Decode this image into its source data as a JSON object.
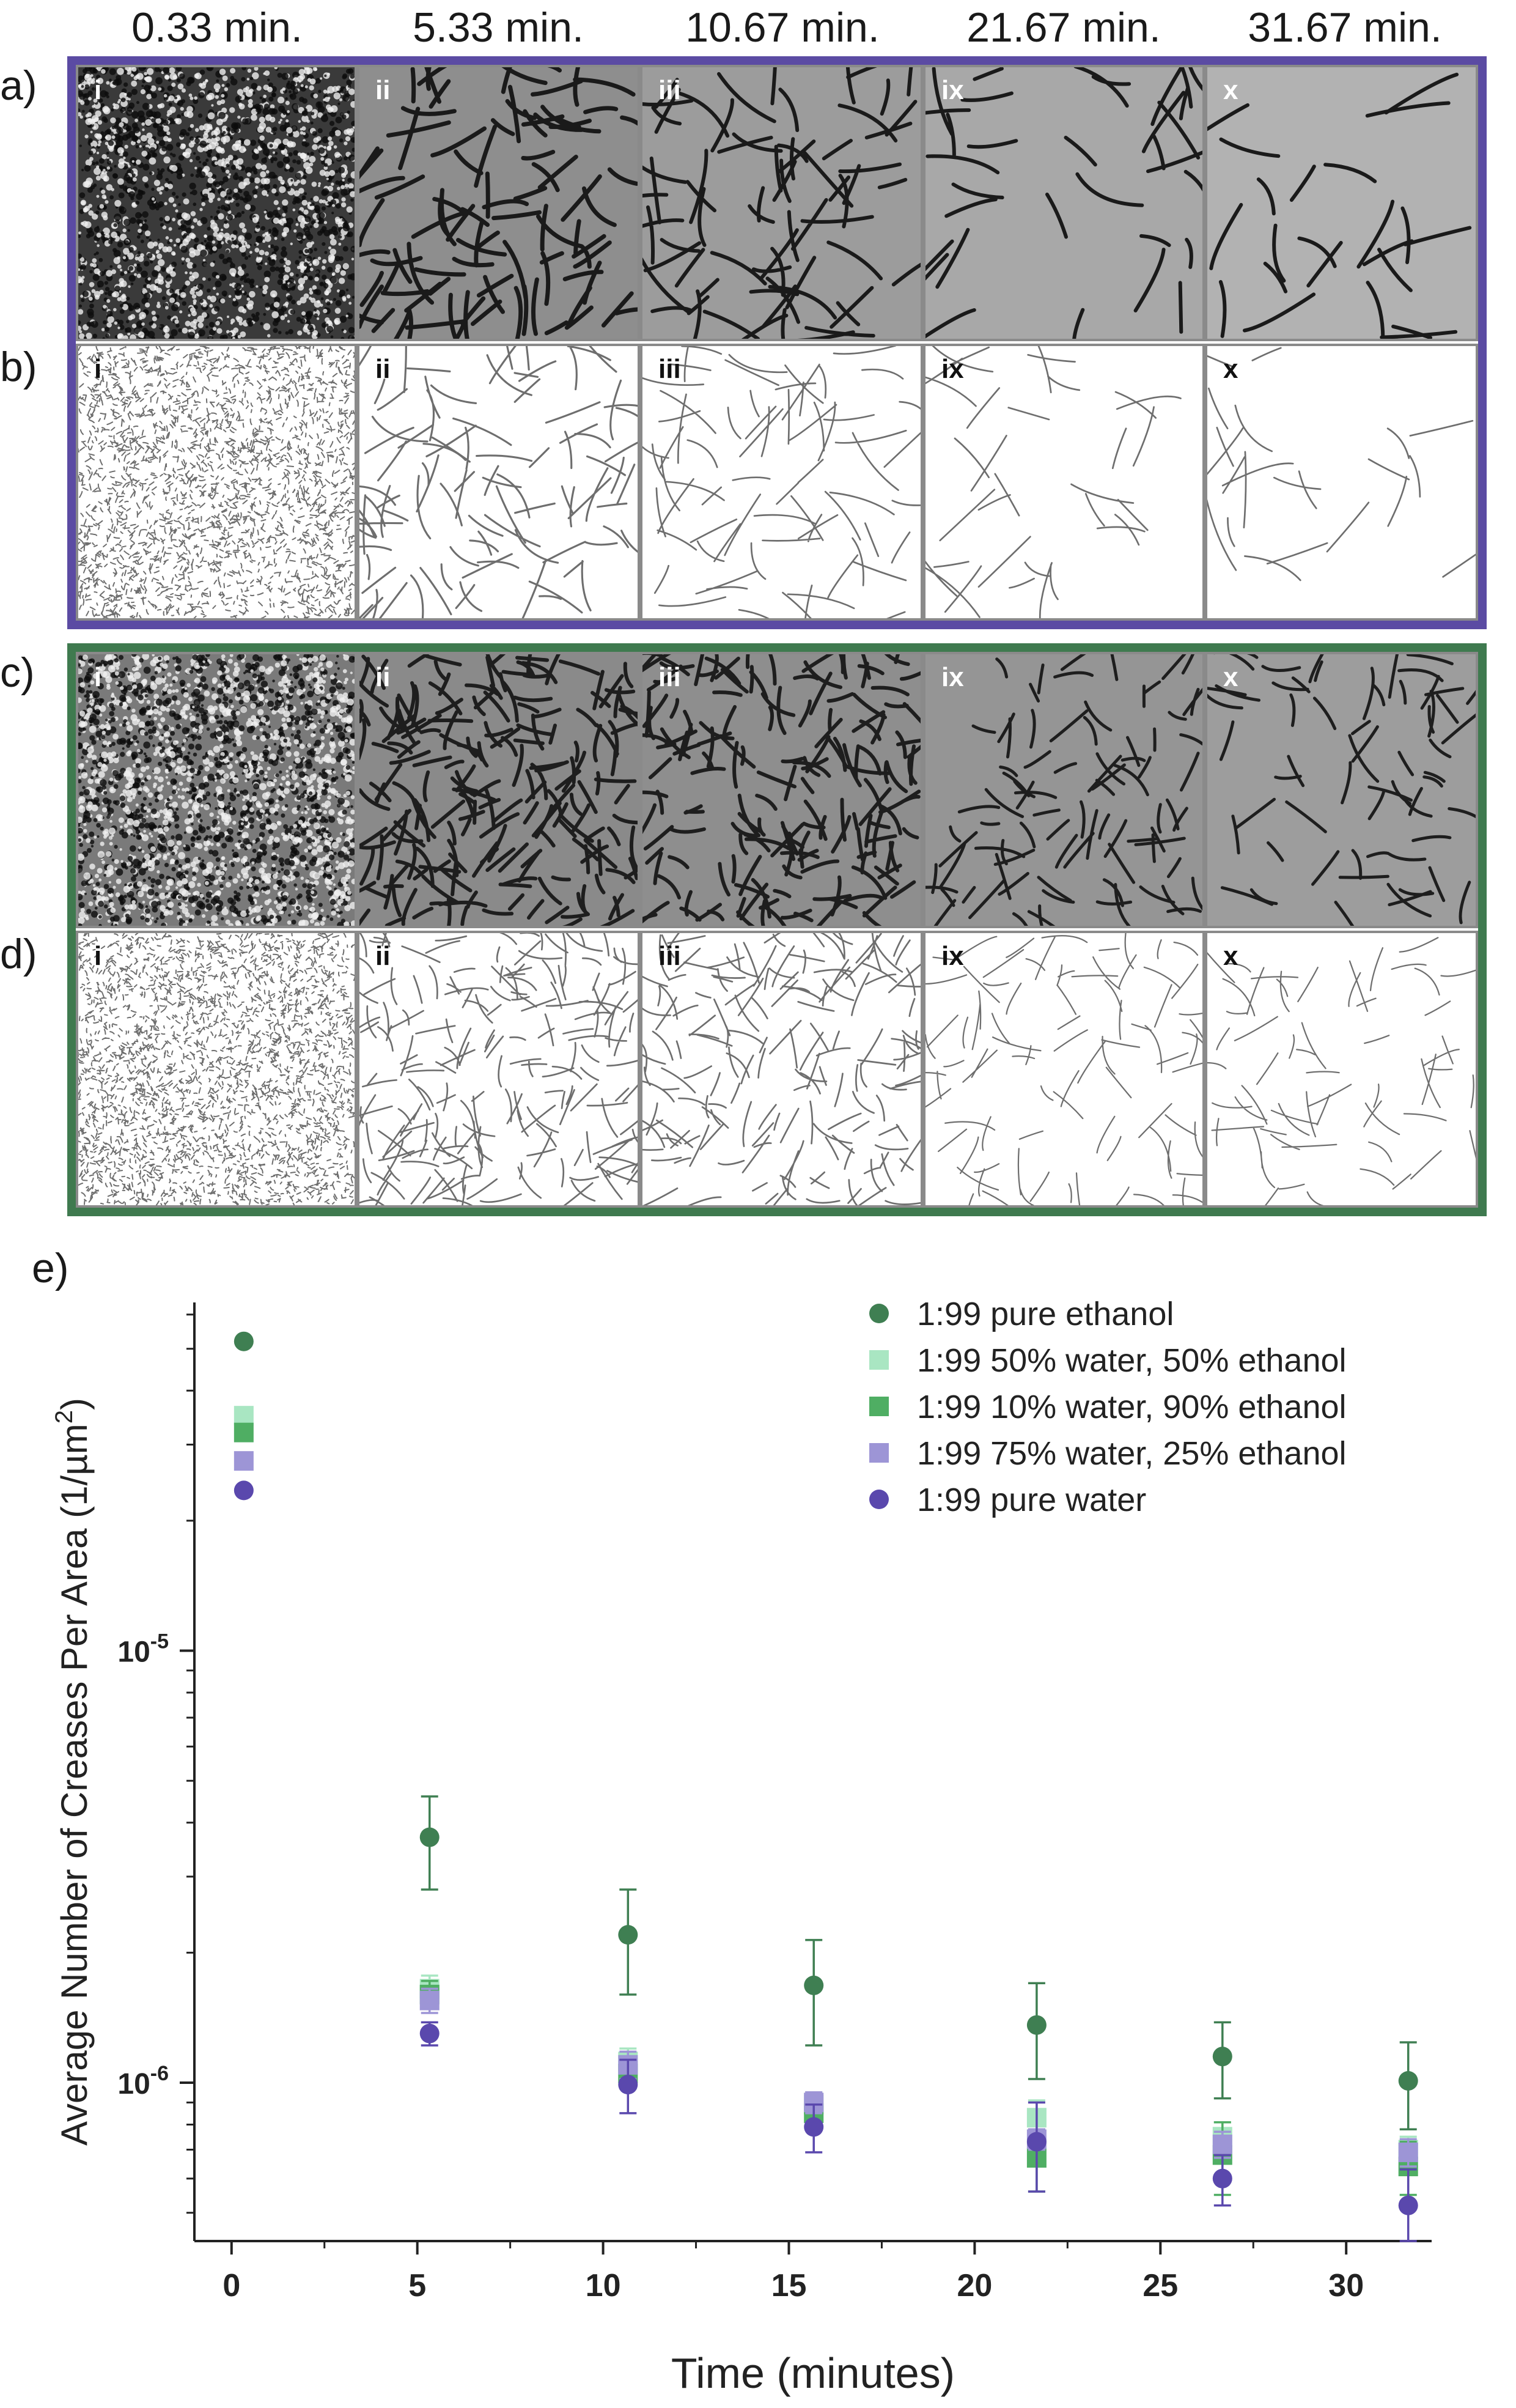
{
  "column_times": [
    "0.33 min.",
    "5.33 min.",
    "10.67 min.",
    "21.67 min.",
    "31.67 min."
  ],
  "row_labels": [
    "a)",
    "b)",
    "c)",
    "d)"
  ],
  "tile_labels": [
    "i",
    "ii",
    "iii",
    "ix",
    "x"
  ],
  "panel_e_label": "e)",
  "colors": {
    "purple_frame": "#5b4ba3",
    "green_frame": "#3f7a4f",
    "pure_ethanol": "#3f7f52",
    "w50_e50": "#a9e6c2",
    "w10_e90": "#4fae63",
    "w75_e25": "#9d95d6",
    "pure_water": "#5a48ad"
  },
  "chart_data": {
    "type": "scatter",
    "xlabel": "Time (minutes)",
    "ylabel_prefix": "Average Number of Creases Per Area (1/µm",
    "ylabel_sup": "2",
    "ylabel_suffix": ")",
    "xlim": [
      -1,
      32.3
    ],
    "ylim": [
      4.3e-07,
      6.4e-05
    ],
    "y_scale": "log",
    "x_ticks": [
      0,
      5,
      10,
      15,
      20,
      25,
      30
    ],
    "x_tick_labels": [
      "0",
      "5",
      "10",
      "15",
      "20",
      "25",
      "30"
    ],
    "y_ticks": [
      1e-06,
      1e-05
    ],
    "y_tick_base": "10",
    "y_tick_exps": [
      "-6",
      "-5"
    ],
    "grid": false,
    "legend_position": "top-right",
    "series": [
      {
        "name": "1:99 pure ethanol",
        "marker": "circle",
        "color_key": "pure_ethanol",
        "x": [
          0.33,
          5.33,
          10.67,
          15.67,
          21.67,
          26.67,
          31.67
        ],
        "y": [
          5.2e-05,
          3.7e-06,
          2.2e-06,
          1.68e-06,
          1.36e-06,
          1.15e-06,
          1.01e-06
        ],
        "err": [
          0,
          9e-07,
          6e-07,
          4.6e-07,
          3.4e-07,
          2.3e-07,
          2.3e-07
        ]
      },
      {
        "name": "1:99 50% water, 50% ethanol",
        "marker": "square",
        "color_key": "w50_e50",
        "x": [
          0.33,
          5.33,
          10.67,
          15.67,
          21.67,
          26.67,
          31.67
        ],
        "y": [
          3.5e-05,
          1.65e-06,
          1.12e-06,
          8.9e-07,
          8.3e-07,
          7.5e-07,
          7e-07
        ],
        "err": [
          0,
          1.2e-07,
          8e-08,
          6e-08,
          8e-08,
          6e-08,
          5e-08
        ]
      },
      {
        "name": "1:99 10% water, 90% ethanol",
        "marker": "square",
        "color_key": "w10_e90",
        "x": [
          0.33,
          5.33,
          10.67,
          15.67,
          21.67,
          26.67,
          31.67
        ],
        "y": [
          3.2e-05,
          1.6e-06,
          1.05e-06,
          8.5e-07,
          6.7e-07,
          6.8e-07,
          6.4e-07
        ],
        "err": [
          0,
          1.2e-07,
          8e-08,
          6e-08,
          1.1e-07,
          1.3e-07,
          9e-08
        ]
      },
      {
        "name": "1:99 75% water, 25% ethanol",
        "marker": "square",
        "color_key": "w75_e25",
        "x": [
          0.33,
          5.33,
          10.67,
          15.67,
          21.67,
          26.67,
          31.67
        ],
        "y": [
          2.75e-05,
          1.55e-06,
          1.1e-06,
          9e-07,
          7.4e-07,
          7.2e-07,
          6.9e-07
        ],
        "err": [
          0,
          1e-07,
          8e-08,
          5e-08,
          4e-08,
          5e-08,
          5e-08
        ]
      },
      {
        "name": "1:99 pure water",
        "marker": "circle",
        "color_key": "pure_water",
        "x": [
          0.33,
          5.33,
          10.67,
          15.67,
          21.67,
          26.67,
          31.67
        ],
        "y": [
          2.35e-05,
          1.3e-06,
          9.9e-07,
          7.9e-07,
          7.3e-07,
          6e-07,
          5.2e-07
        ],
        "err": [
          0,
          8e-08,
          1.4e-07,
          1e-07,
          1.7e-07,
          8e-08,
          1.1e-07
        ]
      }
    ]
  }
}
